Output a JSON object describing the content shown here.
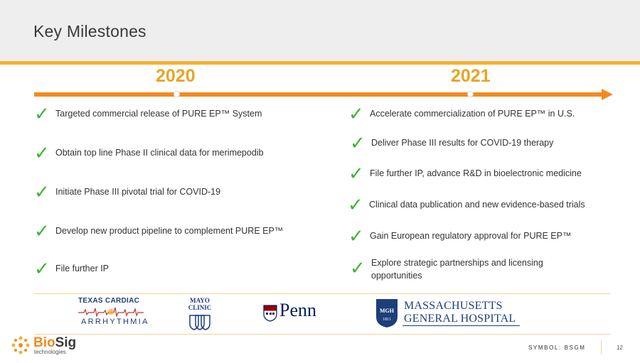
{
  "header": {
    "title": "Key Milestones"
  },
  "timeline": {
    "years": [
      "2020",
      "2021"
    ],
    "accent_color": "#f28b1f",
    "year_color": "#e8a426"
  },
  "milestones_2020": [
    "Targeted commercial release of PURE EP™ System",
    "Obtain top line Phase II clinical data for merimepodib",
    "Initiate Phase III pivotal trial for COVID-19",
    "Develop new product pipeline to complement PURE EP™",
    "File further IP"
  ],
  "milestones_2021": [
    "Accelerate commercialization of PURE EP™ in U.S.",
    "Deliver Phase III results for COVID-19 therapy",
    "File further IP, advance R&D in bioelectronic medicine",
    "Clinical data publication and new evidence-based trials",
    "Gain European regulatory approval for PURE EP™",
    "Explore strategic partnerships and licensing opportunities"
  ],
  "check_symbol": "✓",
  "check_color": "#3db534",
  "partners": {
    "texas_cardiac_top": "TEXAS CARDIAC",
    "texas_cardiac_bottom": "ARRHYTHMIA",
    "mayo": "MAYO CLINIC",
    "penn": "Penn",
    "mgh_line1": "MASSACHUSETTS",
    "mgh_line2": "GENERAL HOSPITAL",
    "mgh_shield_text": "MGH",
    "mgh_shield_year": "1811"
  },
  "footer": {
    "brand_bio": "Bio",
    "brand_sig": "Sig",
    "brand_sub": "technologies",
    "symbol": "SYMBOL: BSGM",
    "page_number": "12"
  },
  "icons": [
    "check-icon",
    "timeline-arrow-icon",
    "biosig-logo-icon",
    "mayo-shield-icon",
    "penn-shield-icon",
    "mgh-shield-icon"
  ]
}
